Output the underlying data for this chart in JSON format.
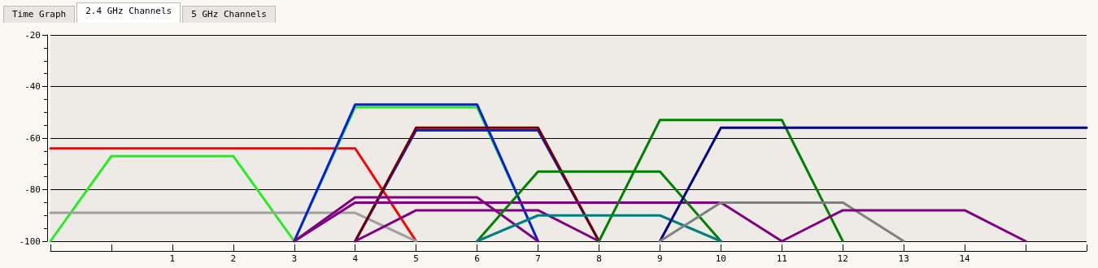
{
  "chart_data": {
    "type": "line",
    "annotations": [
      "Time Graph",
      "2.4 GHz Channels",
      "5 GHz Channels"
    ],
    "xlim": [
      -1,
      16
    ],
    "xticks": [
      {
        "value": -1,
        "label": null
      },
      {
        "value": 0,
        "label": null
      },
      1,
      2,
      3,
      4,
      5,
      6,
      7,
      8,
      9,
      10,
      11,
      12,
      13,
      14,
      {
        "value": 15,
        "label": null
      },
      {
        "value": 16,
        "label": null
      }
    ],
    "ylim": [
      -100,
      -20
    ],
    "yticks": [
      -100,
      -80,
      -60,
      -40,
      -20
    ],
    "grid": "y",
    "marker": "none",
    "line_style": "solid",
    "series": [
      {
        "color": "#ff0000",
        "x": [
          -1,
          4,
          5
        ],
        "values": [
          -64,
          -64,
          -100
        ]
      },
      {
        "color": "#22ee22",
        "x": [
          -1,
          0,
          2,
          3
        ],
        "values": [
          -100,
          -67,
          -67,
          -100
        ]
      },
      {
        "color": "#a0a0a0",
        "x": [
          -1,
          4,
          5
        ],
        "values": [
          -89,
          -89,
          -100
        ]
      },
      {
        "color": "#22ee22",
        "x": [
          3,
          4,
          6,
          7
        ],
        "values": [
          -100,
          -48,
          -48,
          -100
        ]
      },
      {
        "color": "#0a1ee0",
        "x": [
          3,
          4,
          6,
          7
        ],
        "values": [
          -100,
          -47,
          -47,
          -100
        ]
      },
      {
        "color": "#0a1ee0",
        "x": [
          4,
          5,
          7,
          8
        ],
        "values": [
          -100,
          -57,
          -57,
          -100
        ]
      },
      {
        "color": "#700000",
        "x": [
          4,
          5,
          7,
          8
        ],
        "values": [
          -100,
          -56,
          -56,
          -100
        ]
      },
      {
        "color": "#800080",
        "x": [
          3,
          4,
          6,
          7
        ],
        "values": [
          -100,
          -83,
          -83,
          -100
        ]
      },
      {
        "color": "#800080",
        "x": [
          3,
          4,
          10,
          11
        ],
        "values": [
          -100,
          -85,
          -85,
          -100
        ]
      },
      {
        "color": "#800080",
        "x": [
          4,
          5,
          7,
          8
        ],
        "values": [
          -100,
          -88,
          -88,
          -100
        ]
      },
      {
        "color": "#008000",
        "x": [
          6,
          7,
          9,
          10
        ],
        "values": [
          -100,
          -73,
          -73,
          -100
        ]
      },
      {
        "color": "#008080",
        "x": [
          6,
          7,
          9,
          10
        ],
        "values": [
          -100,
          -90,
          -90,
          -100
        ]
      },
      {
        "color": "#008000",
        "x": [
          8,
          9,
          11,
          12
        ],
        "values": [
          -100,
          -53,
          -53,
          -100
        ]
      },
      {
        "color": "#000080",
        "x": [
          9,
          10,
          16
        ],
        "values": [
          -100,
          -56,
          -56
        ]
      },
      {
        "color": "#808080",
        "x": [
          9,
          10,
          12,
          13
        ],
        "values": [
          -100,
          -85,
          -85,
          -100
        ]
      },
      {
        "color": "#800080",
        "x": [
          11,
          12,
          14,
          15
        ],
        "values": [
          -100,
          -88,
          -88,
          -100
        ]
      }
    ]
  }
}
